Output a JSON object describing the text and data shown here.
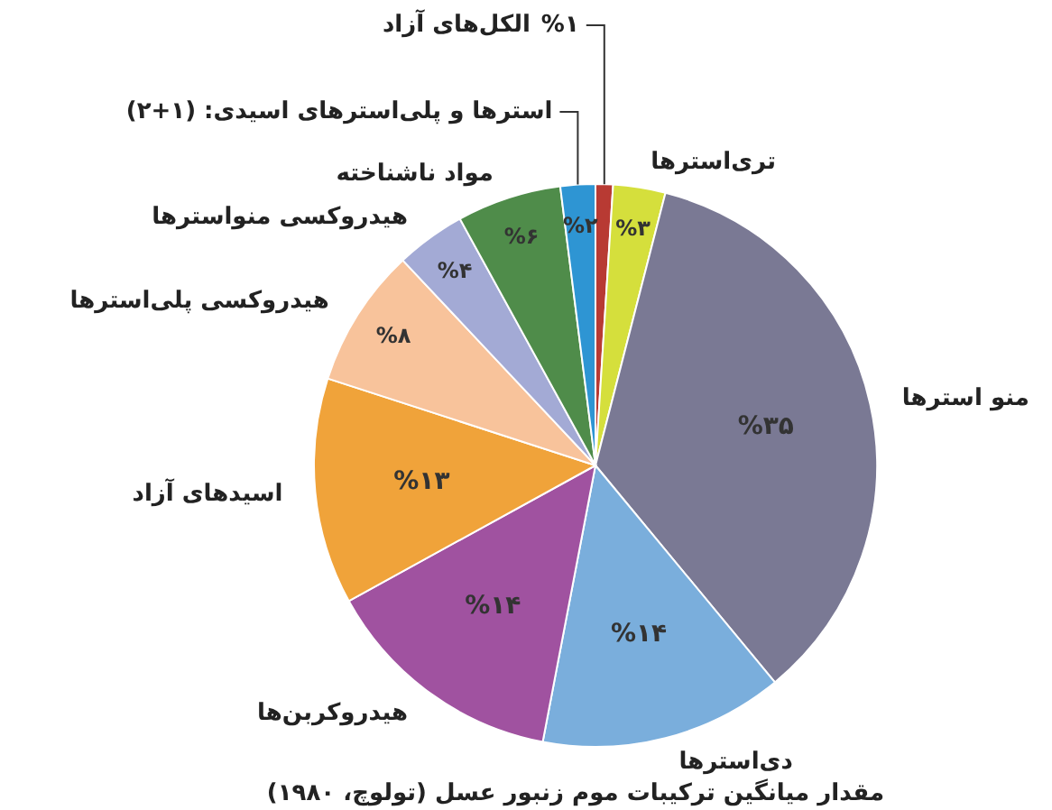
{
  "chart_data": {
    "type": "pie",
    "title": "مقدار میانگین ترکیبات موم زنبور عسل (تولوچ، ۱۹۸۰)",
    "categories": [
      "الکل‌های آزاد",
      "تری‌استرها",
      "منو استرها",
      "دی‌استرها",
      "هیدروکربن‌ها",
      "اسیدهای آزاد",
      "هیدروکسی پلی‌استرها",
      "هیدروکسی منواسترها",
      "مواد ناشناخته",
      "استرها و پلی‌استرهای اسیدی: (۱+۲)"
    ],
    "values": [
      1,
      3,
      35,
      14,
      14,
      13,
      8,
      4,
      6,
      2
    ],
    "value_labels": [
      "%۱",
      "%۳",
      "%۳۵",
      "%۱۴",
      "%۱۴",
      "%۱۳",
      "%۸",
      "%۴",
      "%۶",
      "%۲"
    ],
    "colors": [
      "#b83a33",
      "#d5df3c",
      "#7a7994",
      "#7aaedc",
      "#a052a0",
      "#f0a33a",
      "#f8c39b",
      "#a3aad5",
      "#4f8c4a",
      "#2e95d3"
    ]
  }
}
